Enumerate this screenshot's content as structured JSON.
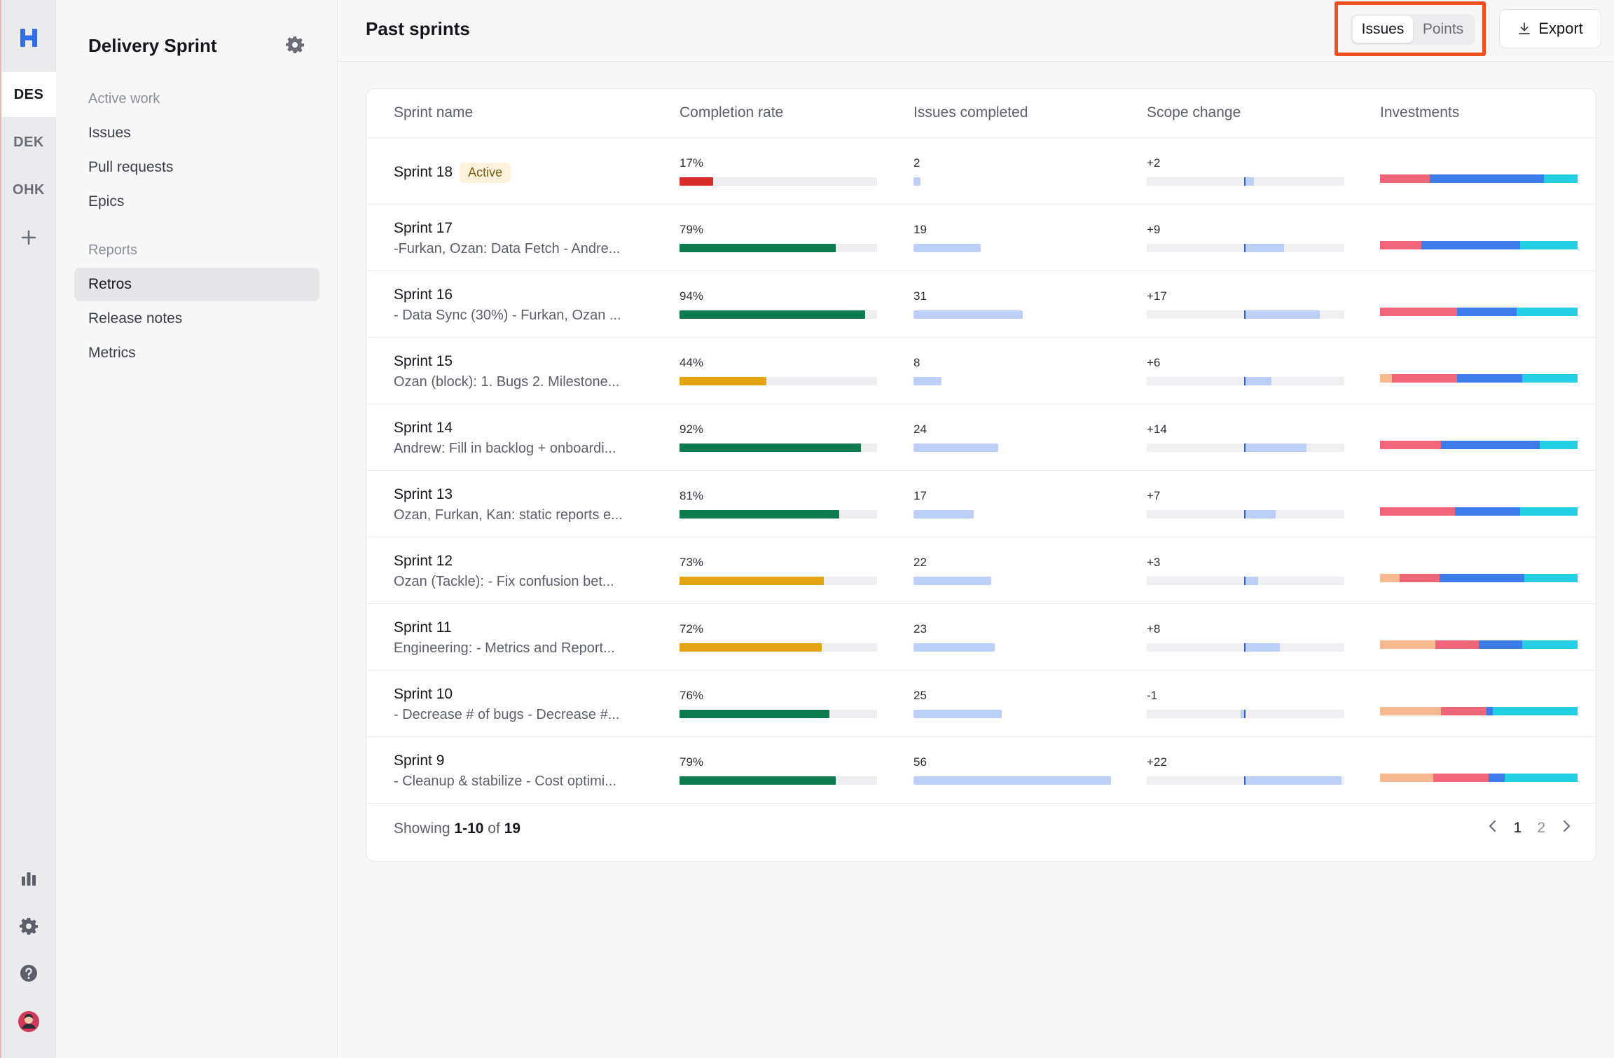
{
  "rail": {
    "workspaces": [
      {
        "label": "DES",
        "active": true
      },
      {
        "label": "DEK",
        "active": false
      },
      {
        "label": "OHK",
        "active": false
      }
    ]
  },
  "sidebar": {
    "title": "Delivery Sprint",
    "sections": [
      {
        "label": "Active work",
        "items": [
          {
            "label": "Issues"
          },
          {
            "label": "Pull requests"
          },
          {
            "label": "Epics"
          }
        ]
      },
      {
        "label": "Reports",
        "items": [
          {
            "label": "Retros",
            "selected": true
          },
          {
            "label": "Release notes"
          },
          {
            "label": "Metrics"
          }
        ]
      }
    ]
  },
  "header": {
    "title": "Past sprints",
    "toggle": {
      "options": [
        "Issues",
        "Points"
      ],
      "selected": "Issues"
    },
    "export_label": "Export"
  },
  "colors": {
    "green": "#0d7a4f",
    "amber": "#e2a412",
    "red": "#d92a2a",
    "issues": "#bccff7",
    "inv_orange": "#f7b98f",
    "inv_pink": "#f06577",
    "inv_blue": "#3d7bea",
    "inv_cyan": "#22cfe3",
    "highlight": "#f0501f"
  },
  "table": {
    "columns": [
      "Sprint name",
      "Completion rate",
      "Issues completed",
      "Scope change",
      "Investments"
    ],
    "rows": [
      {
        "name": "Sprint 18",
        "badge": "Active",
        "desc": "",
        "completion": "17%",
        "completion_pct": 17,
        "completion_color": "red",
        "issues": "2",
        "issues_val": 2,
        "scope": "+2",
        "scope_val": 2,
        "inv": [
          0,
          25,
          58,
          17
        ]
      },
      {
        "name": "Sprint 17",
        "badge": "",
        "desc": "-Furkan, Ozan: Data Fetch - Andre...",
        "completion": "79%",
        "completion_pct": 79,
        "completion_color": "green",
        "issues": "19",
        "issues_val": 19,
        "scope": "+9",
        "scope_val": 9,
        "inv": [
          0,
          21,
          50,
          29
        ]
      },
      {
        "name": "Sprint 16",
        "badge": "",
        "desc": "- Data Sync (30%) - Furkan, Ozan ...",
        "completion": "94%",
        "completion_pct": 94,
        "completion_color": "green",
        "issues": "31",
        "issues_val": 31,
        "scope": "+17",
        "scope_val": 17,
        "inv": [
          0,
          39,
          30,
          31
        ]
      },
      {
        "name": "Sprint 15",
        "badge": "",
        "desc": "Ozan (block): 1. Bugs 2. Milestone...",
        "completion": "44%",
        "completion_pct": 44,
        "completion_color": "amber",
        "issues": "8",
        "issues_val": 8,
        "scope": "+6",
        "scope_val": 6,
        "inv": [
          6,
          33,
          33,
          28
        ]
      },
      {
        "name": "Sprint 14",
        "badge": "",
        "desc": "Andrew: Fill in backlog + onboardi...",
        "completion": "92%",
        "completion_pct": 92,
        "completion_color": "green",
        "issues": "24",
        "issues_val": 24,
        "scope": "+14",
        "scope_val": 14,
        "inv": [
          0,
          31,
          50,
          19
        ]
      },
      {
        "name": "Sprint 13",
        "badge": "",
        "desc": "Ozan, Furkan, Kan: static reports e...",
        "completion": "81%",
        "completion_pct": 81,
        "completion_color": "green",
        "issues": "17",
        "issues_val": 17,
        "scope": "+7",
        "scope_val": 7,
        "inv": [
          0,
          38,
          33,
          29
        ]
      },
      {
        "name": "Sprint 12",
        "badge": "",
        "desc": "Ozan (Tackle): - Fix confusion bet...",
        "completion": "73%",
        "completion_pct": 73,
        "completion_color": "amber",
        "issues": "22",
        "issues_val": 22,
        "scope": "+3",
        "scope_val": 3,
        "inv": [
          10,
          20,
          43,
          27
        ]
      },
      {
        "name": "Sprint 11",
        "badge": "",
        "desc": "Engineering: - Metrics and Report...",
        "completion": "72%",
        "completion_pct": 72,
        "completion_color": "amber",
        "issues": "23",
        "issues_val": 23,
        "scope": "+8",
        "scope_val": 8,
        "inv": [
          28,
          22,
          22,
          28
        ]
      },
      {
        "name": "Sprint 10",
        "badge": "",
        "desc": "- Decrease # of bugs - Decrease #...",
        "completion": "76%",
        "completion_pct": 76,
        "completion_color": "green",
        "issues": "25",
        "issues_val": 25,
        "scope": "-1",
        "scope_val": -1,
        "inv": [
          31,
          23,
          3,
          43
        ]
      },
      {
        "name": "Sprint 9",
        "badge": "",
        "desc": "- Cleanup & stabilize - Cost optimi...",
        "completion": "79%",
        "completion_pct": 79,
        "completion_color": "green",
        "issues": "56",
        "issues_val": 56,
        "scope": "+22",
        "scope_val": 22,
        "inv": [
          27,
          28,
          8,
          37
        ]
      }
    ]
  },
  "footer": {
    "showing_prefix": "Showing",
    "showing_range": "1-10",
    "showing_of": "of",
    "showing_total": "19",
    "pages": [
      "1",
      "2"
    ],
    "current_page": "1"
  }
}
